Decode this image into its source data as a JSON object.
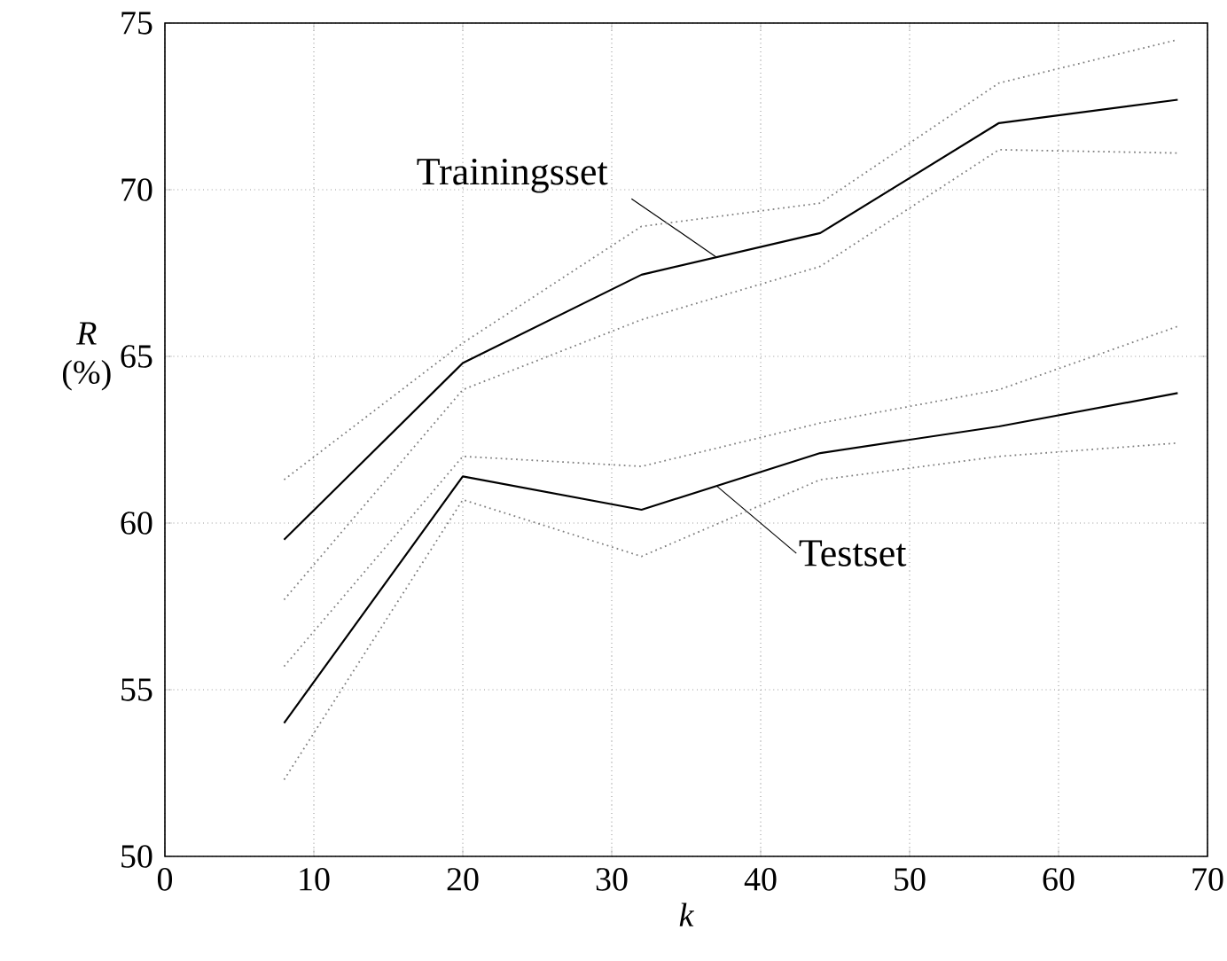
{
  "chart_data": {
    "type": "line",
    "xlabel": "k",
    "ylabel": "*R* (%)",
    "x": [
      8,
      20,
      32,
      44,
      56,
      68
    ],
    "series": [
      {
        "name": "Trainingsset",
        "color": "#000000",
        "values": [
          59.5,
          64.8,
          67.45,
          68.7,
          72.0,
          72.7
        ]
      },
      {
        "color": "#808080",
        "line_style": "dotted",
        "values": [
          57.7,
          64.0,
          66.1,
          67.7,
          71.2,
          71.1
        ]
      },
      {
        "color": "#808080",
        "line_style": "dotted",
        "values": [
          61.3,
          65.4,
          68.9,
          69.6,
          73.2,
          74.5
        ]
      },
      {
        "name": "Testset",
        "color": "#000000",
        "values": [
          54.0,
          61.4,
          60.4,
          62.1,
          62.9,
          63.9
        ]
      },
      {
        "color": "#808080",
        "line_style": "dotted",
        "values": [
          52.3,
          60.7,
          59.0,
          61.3,
          62.0,
          62.4
        ]
      },
      {
        "color": "#808080",
        "line_style": "dotted",
        "values": [
          55.7,
          62.0,
          61.7,
          63.0,
          64.0,
          65.9
        ]
      }
    ],
    "xlim": [
      0,
      70
    ],
    "ylim": [
      50,
      75
    ],
    "xticks": [
      0,
      10,
      20,
      30,
      40,
      50,
      60,
      70
    ],
    "yticks": [
      50,
      55,
      60,
      65,
      70,
      75
    ],
    "grid": true,
    "line_style": "solid",
    "marker": "none",
    "legend": false
  }
}
